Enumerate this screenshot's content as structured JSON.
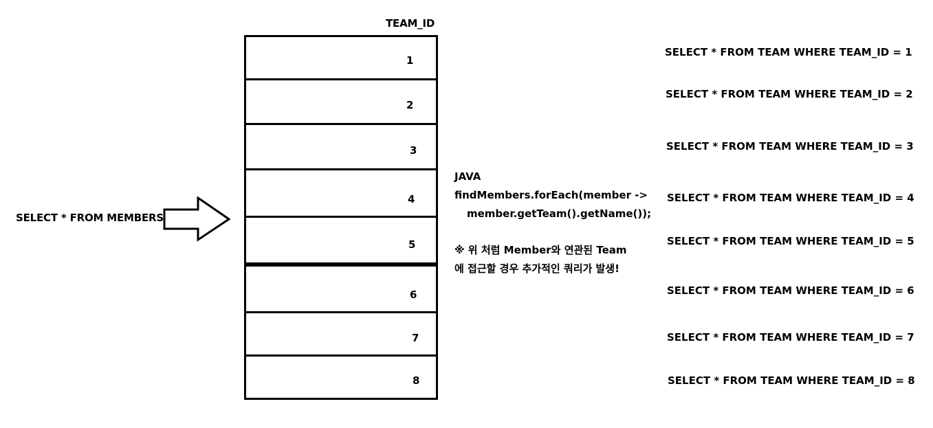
{
  "column_header": "TEAM_ID",
  "members_query": "SELECT * FROM MEMBERS",
  "team_ids": [
    "1",
    "2",
    "3",
    "4",
    "5",
    "6",
    "7",
    "8"
  ],
  "code": {
    "label": "JAVA",
    "line1": "findMembers.forEach(member ->",
    "line2": "member.getTeam().getName());"
  },
  "note": {
    "line1": "※ 위 처럼 Member와 연관된 Team",
    "line2": "에 접근할 경우 추가적인 쿼리가 발생!"
  },
  "team_queries": [
    "SELECT * FROM TEAM WHERE TEAM_ID = 1",
    "SELECT * FROM TEAM WHERE TEAM_ID = 2",
    "SELECT * FROM TEAM WHERE TEAM_ID = 3",
    "SELECT * FROM TEAM WHERE TEAM_ID = 4",
    "SELECT * FROM TEAM WHERE TEAM_ID = 5",
    "SELECT * FROM TEAM WHERE TEAM_ID = 6",
    "SELECT * FROM TEAM WHERE TEAM_ID = 7",
    "SELECT * FROM TEAM WHERE TEAM_ID = 8"
  ]
}
